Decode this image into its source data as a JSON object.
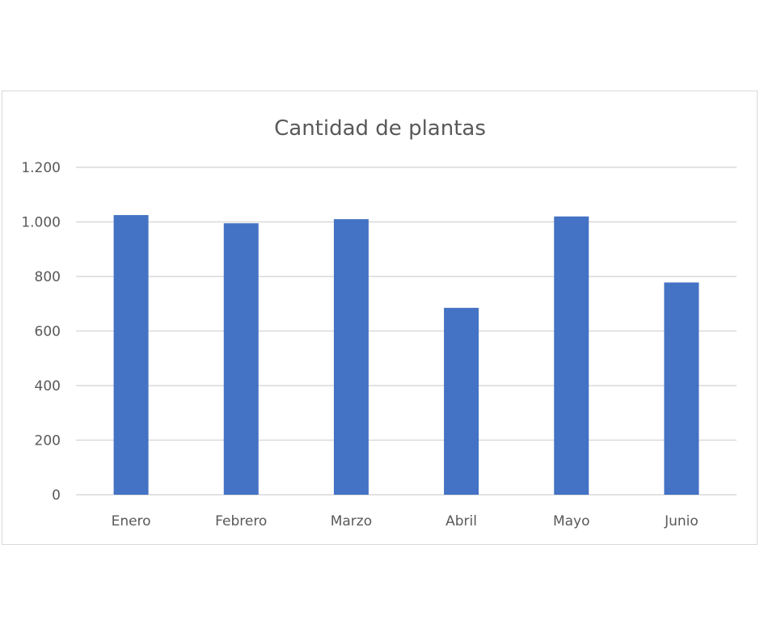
{
  "chart_data": {
    "type": "bar",
    "title": "Cantidad de plantas",
    "categories": [
      "Enero",
      "Febrero",
      "Marzo",
      "Abril",
      "Mayo",
      "Junio"
    ],
    "values": [
      1025,
      995,
      1010,
      685,
      1020,
      778
    ],
    "ylim": [
      0,
      1200
    ],
    "yticks": [
      0,
      200,
      400,
      600,
      800,
      1000,
      1200
    ],
    "ytick_labels": [
      "0",
      "200",
      "400",
      "600",
      "800",
      "1.000",
      "1.200"
    ],
    "grid": true,
    "legend": "none",
    "bar_color": "#4472C4"
  }
}
